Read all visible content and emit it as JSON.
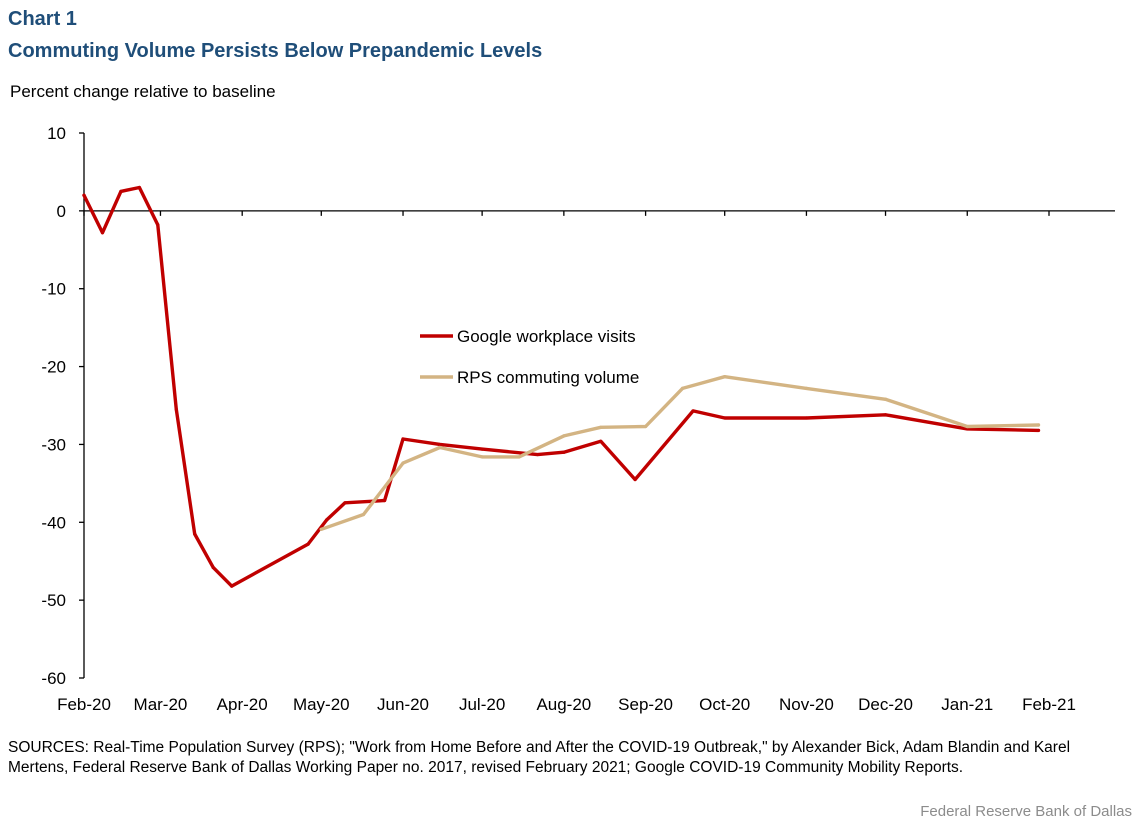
{
  "header": {
    "chart_number": "Chart 1",
    "title": "Commuting Volume Persists Below Prepandemic Levels"
  },
  "unit_label": "Percent change relative to baseline",
  "sources": "SOURCES: Real-Time Population Survey (RPS); \"Work from Home Before and After the COVID-19 Outbreak,\" by Alexander Bick, Adam Blandin and Karel Mertens, Federal Reserve Bank of Dallas Working Paper no. 2017, revised February 2021; Google COVID-19 Community Mobility Reports.",
  "credit": "Federal Reserve Bank of Dallas",
  "chart_data": {
    "type": "line",
    "title": "Commuting Volume Persists Below Prepandemic Levels",
    "ylabel": "Percent change relative to baseline",
    "xlabel": "",
    "ylim": [
      -60,
      10
    ],
    "yticks": [
      10,
      0,
      -10,
      -20,
      -30,
      -40,
      -50,
      -60
    ],
    "x_domain": [
      "2020-02-01",
      "2021-02-01"
    ],
    "x_tick_dates": [
      "2020-02-01",
      "2020-03-01",
      "2020-04-01",
      "2020-05-01",
      "2020-06-01",
      "2020-07-01",
      "2020-08-01",
      "2020-09-01",
      "2020-10-01",
      "2020-11-01",
      "2020-12-01",
      "2021-01-01",
      "2021-02-01"
    ],
    "x_tick_labels": [
      "Feb-20",
      "Mar-20",
      "Apr-20",
      "May-20",
      "Jun-20",
      "Jul-20",
      "Aug-20",
      "Sep-20",
      "Oct-20",
      "Nov-20",
      "Dec-20",
      "Jan-21",
      "Feb-21"
    ],
    "grid": false,
    "legend_position": "center",
    "series": [
      {
        "name": "Google workplace visits",
        "color": "#c00000",
        "points": [
          {
            "x": "2020-02-01",
            "y": 2
          },
          {
            "x": "2020-02-08",
            "y": -2.8
          },
          {
            "x": "2020-02-15",
            "y": 2.5
          },
          {
            "x": "2020-02-22",
            "y": 3
          },
          {
            "x": "2020-02-29",
            "y": -1.8
          },
          {
            "x": "2020-03-07",
            "y": -25.5
          },
          {
            "x": "2020-03-14",
            "y": -41.5
          },
          {
            "x": "2020-03-21",
            "y": -45.8
          },
          {
            "x": "2020-03-28",
            "y": -48.2
          },
          {
            "x": "2020-04-26",
            "y": -42.8
          },
          {
            "x": "2020-05-03",
            "y": -39.7
          },
          {
            "x": "2020-05-10",
            "y": -37.5
          },
          {
            "x": "2020-05-25",
            "y": -37.2
          },
          {
            "x": "2020-06-01",
            "y": -29.3
          },
          {
            "x": "2020-06-15",
            "y": -30
          },
          {
            "x": "2020-07-01",
            "y": -30.6
          },
          {
            "x": "2020-07-22",
            "y": -31.3
          },
          {
            "x": "2020-08-01",
            "y": -31
          },
          {
            "x": "2020-08-15",
            "y": -29.6
          },
          {
            "x": "2020-08-28",
            "y": -34.5
          },
          {
            "x": "2020-09-19",
            "y": -25.7
          },
          {
            "x": "2020-10-01",
            "y": -26.6
          },
          {
            "x": "2020-11-01",
            "y": -26.6
          },
          {
            "x": "2020-12-01",
            "y": -26.2
          },
          {
            "x": "2021-01-01",
            "y": -28
          },
          {
            "x": "2021-01-28",
            "y": -28.2
          }
        ]
      },
      {
        "name": "RPS commuting volume",
        "color": "#d3b483",
        "points": [
          {
            "x": "2020-05-01",
            "y": -40.9
          },
          {
            "x": "2020-05-17",
            "y": -39
          },
          {
            "x": "2020-06-01",
            "y": -32.4
          },
          {
            "x": "2020-06-15",
            "y": -30.4
          },
          {
            "x": "2020-07-01",
            "y": -31.6
          },
          {
            "x": "2020-07-15",
            "y": -31.6
          },
          {
            "x": "2020-08-01",
            "y": -28.9
          },
          {
            "x": "2020-08-15",
            "y": -27.8
          },
          {
            "x": "2020-09-01",
            "y": -27.7
          },
          {
            "x": "2020-09-15",
            "y": -22.8
          },
          {
            "x": "2020-10-01",
            "y": -21.3
          },
          {
            "x": "2020-11-01",
            "y": -22.8
          },
          {
            "x": "2020-12-01",
            "y": -24.2
          },
          {
            "x": "2021-01-01",
            "y": -27.7
          },
          {
            "x": "2021-01-28",
            "y": -27.5
          }
        ]
      }
    ]
  }
}
